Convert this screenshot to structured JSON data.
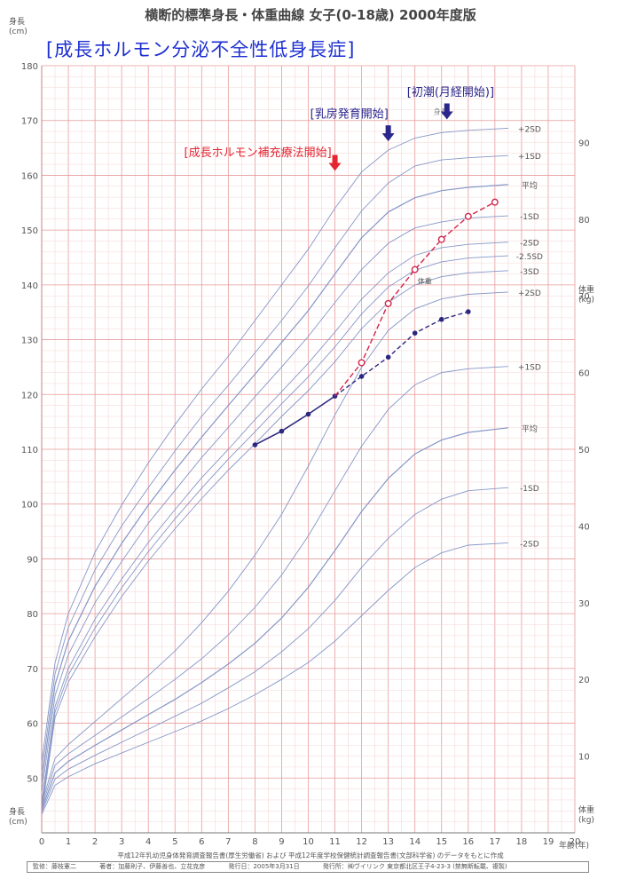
{
  "header": {
    "title": "横断的標準身長・体重曲線 女子(0-18歳) 2000年度版",
    "subtitle": "[成長ホルモン分泌不全性低身長症]"
  },
  "axis": {
    "height_label_top": "身長\n(cm)",
    "height_label_bottom": "身長\n(cm)",
    "weight_label_top": "体重\n(kg)",
    "weight_label_bottom": "体重\n(kg)",
    "x_unit": "年齢(年)"
  },
  "footer": {
    "source": "平成12年乳幼児身体発育調査報告書(厚生労働省) および 平成12年度学校保健統計調査報告書(文部科学省) のデータをもとに作成",
    "credits": [
      "監修：藤枝憲二",
      "著者：加藤則子、伊藤善也、立花克彦",
      "発行日：2005年3月31日",
      "発行所：㈱ヴイリンク 東京都北区王子4-23-3 (禁無断転載、複製)"
    ]
  },
  "chart_data": {
    "type": "line",
    "title": "横断的標準身長・体重曲線 女子(0-18歳) 2000年度版",
    "subtitle": "[成長ホルモン分泌不全性低身長症]",
    "xlabel": "年齢(年)",
    "ylabel": "身長(cm)",
    "y2label": "体重(kg)",
    "xlim": [
      0,
      20
    ],
    "ylim": [
      40,
      180
    ],
    "y2lim": [
      0,
      100
    ],
    "x_ticks": [
      0,
      1,
      2,
      3,
      4,
      5,
      6,
      7,
      8,
      9,
      10,
      11,
      12,
      13,
      14,
      15,
      16,
      17,
      18,
      19,
      20
    ],
    "y_ticks": [
      50,
      60,
      70,
      80,
      90,
      100,
      110,
      120,
      130,
      140,
      150,
      160,
      170,
      180
    ],
    "y2_ticks": [
      10,
      20,
      30,
      40,
      50,
      60,
      70,
      80,
      90
    ],
    "grid": true,
    "colors": {
      "grid_major": "#e79b9b",
      "grid_minor": "#f6d6d6",
      "reference_curves": "#8597c7",
      "patient_height": "#2c2880",
      "patient_height_after": "#d4254a",
      "annotation_red": "#e52530",
      "annotation_blue": "#2a268c"
    },
    "height_curves": [
      {
        "name": "+2SD",
        "x": [
          0,
          0.5,
          1,
          2,
          3,
          4,
          5,
          6,
          7,
          8,
          9,
          10,
          11,
          12,
          13,
          14,
          15,
          16,
          17.5
        ],
        "values": [
          52.8,
          71.0,
          80.0,
          91.2,
          99.8,
          107.5,
          114.5,
          121.0,
          127.0,
          133.5,
          140.0,
          146.5,
          154.0,
          160.6,
          164.6,
          166.8,
          167.8,
          168.2,
          168.6
        ]
      },
      {
        "name": "+1SD",
        "x": [
          0,
          0.5,
          1,
          2,
          3,
          4,
          5,
          6,
          7,
          8,
          9,
          10,
          11,
          12,
          13,
          14,
          15,
          16,
          17.5
        ],
        "values": [
          51.0,
          69.0,
          77.5,
          88.0,
          96.0,
          103.0,
          109.7,
          116.0,
          121.7,
          127.6,
          133.5,
          139.8,
          146.8,
          153.5,
          158.6,
          161.7,
          162.8,
          163.2,
          163.6
        ]
      },
      {
        "name": "平均",
        "x": [
          0,
          0.5,
          1,
          2,
          3,
          4,
          5,
          6,
          7,
          8,
          9,
          10,
          11,
          12,
          13,
          14,
          15,
          16,
          17.5
        ],
        "values": [
          49.2,
          67.0,
          75.0,
          85.0,
          92.8,
          99.8,
          106.2,
          112.2,
          118.0,
          123.7,
          129.5,
          135.3,
          142.0,
          148.6,
          153.3,
          155.9,
          157.2,
          157.8,
          158.3
        ]
      },
      {
        "name": "-1SD",
        "x": [
          0,
          0.5,
          1,
          2,
          3,
          4,
          5,
          6,
          7,
          8,
          9,
          10,
          11,
          12,
          13,
          14,
          15,
          16,
          17.5
        ],
        "values": [
          47.4,
          65.0,
          72.5,
          82.0,
          89.5,
          96.5,
          102.5,
          108.5,
          114.0,
          119.6,
          125.0,
          130.6,
          136.8,
          142.8,
          147.6,
          150.4,
          151.5,
          152.2,
          152.6
        ]
      },
      {
        "name": "-2SD",
        "x": [
          0,
          0.5,
          1,
          2,
          3,
          4,
          5,
          6,
          7,
          8,
          9,
          10,
          11,
          12,
          13,
          14,
          15,
          16,
          17.5
        ],
        "values": [
          45.5,
          63.0,
          70.0,
          79.0,
          86.3,
          93.0,
          99.0,
          104.8,
          110.0,
          115.4,
          120.5,
          125.7,
          131.4,
          137.4,
          142.2,
          145.4,
          146.8,
          147.4,
          147.8
        ]
      },
      {
        "name": "-2.5SD",
        "x": [
          0,
          0.5,
          1,
          2,
          3,
          4,
          5,
          6,
          7,
          8,
          9,
          10,
          11,
          12,
          13,
          14,
          15,
          16,
          17.5
        ],
        "values": [
          44.6,
          62.0,
          68.8,
          77.4,
          84.7,
          91.3,
          97.3,
          102.9,
          108.2,
          113.2,
          118.3,
          123.2,
          128.7,
          134.7,
          139.6,
          142.7,
          144.2,
          144.9,
          145.3
        ]
      },
      {
        "name": "-3SD",
        "x": [
          0,
          0.5,
          1,
          2,
          3,
          4,
          5,
          6,
          7,
          8,
          9,
          10,
          11,
          12,
          13,
          14,
          15,
          16,
          17.5
        ],
        "values": [
          43.7,
          61.0,
          67.5,
          75.8,
          83.1,
          89.6,
          95.5,
          101.0,
          106.2,
          111.0,
          116.0,
          120.7,
          126.0,
          132.0,
          136.8,
          140.0,
          141.5,
          142.2,
          142.6
        ]
      }
    ],
    "weight_curves": [
      {
        "name": "+2SD",
        "x": [
          0,
          0.5,
          1,
          2,
          3,
          4,
          5,
          6,
          7,
          8,
          9,
          10,
          11,
          12,
          13,
          14,
          15,
          16,
          17.5
        ],
        "values": [
          3.7,
          9.7,
          11.5,
          14.5,
          17.5,
          20.5,
          23.7,
          27.4,
          31.5,
          36.2,
          41.5,
          47.8,
          54.5,
          60.7,
          65.5,
          68.3,
          69.6,
          70.2,
          70.5
        ]
      },
      {
        "name": "+1SD",
        "x": [
          0,
          0.5,
          1,
          2,
          3,
          4,
          5,
          6,
          7,
          8,
          9,
          10,
          11,
          12,
          13,
          14,
          15,
          16,
          17.5
        ],
        "values": [
          3.3,
          8.8,
          10.3,
          12.7,
          15.1,
          17.5,
          20.0,
          22.7,
          25.8,
          29.4,
          33.6,
          38.7,
          44.6,
          50.4,
          55.2,
          58.4,
          60.0,
          60.5,
          60.8
        ]
      },
      {
        "name": "平均",
        "x": [
          0,
          0.5,
          1,
          2,
          3,
          4,
          5,
          6,
          7,
          8,
          9,
          10,
          11,
          12,
          13,
          14,
          15,
          16,
          17.5
        ],
        "values": [
          3.0,
          7.8,
          9.3,
          11.4,
          13.4,
          15.4,
          17.4,
          19.6,
          22.0,
          24.7,
          28.0,
          32.0,
          36.8,
          41.9,
          46.2,
          49.4,
          51.2,
          52.2,
          52.8
        ]
      },
      {
        "name": "-1SD",
        "x": [
          0,
          0.5,
          1,
          2,
          3,
          4,
          5,
          6,
          7,
          8,
          9,
          10,
          11,
          12,
          13,
          14,
          15,
          16,
          17.5
        ],
        "values": [
          2.7,
          7.0,
          8.3,
          10.1,
          11.8,
          13.5,
          15.2,
          16.9,
          18.9,
          21.0,
          23.6,
          26.6,
          30.3,
          34.6,
          38.4,
          41.5,
          43.5,
          44.6,
          45.0
        ]
      },
      {
        "name": "-2SD",
        "x": [
          0,
          0.5,
          1,
          2,
          3,
          4,
          5,
          6,
          7,
          8,
          9,
          10,
          11,
          12,
          13,
          14,
          15,
          16,
          17.5
        ],
        "values": [
          2.4,
          6.2,
          7.3,
          9.0,
          10.4,
          11.8,
          13.2,
          14.6,
          16.2,
          18.0,
          20.0,
          22.2,
          25.0,
          28.3,
          31.6,
          34.6,
          36.5,
          37.5,
          37.8
        ]
      }
    ],
    "patient_height": {
      "x": [
        8,
        9,
        10,
        11,
        12,
        13,
        14,
        15,
        16
      ],
      "values": [
        110.8,
        113.3,
        116.4,
        119.7,
        123.3,
        126.8,
        131.2,
        133.7,
        135.1
      ]
    },
    "patient_height_after": {
      "x": [
        11,
        12,
        13,
        14,
        15,
        16,
        17
      ],
      "values": [
        119.7,
        125.8,
        136.6,
        142.8,
        148.3,
        152.5,
        155.1
      ]
    },
    "annotations": [
      {
        "text": "[成長ホルモン補充療法開始]",
        "x": 11,
        "color": "red"
      },
      {
        "text": "[乳房発育開始]",
        "x": 13,
        "color": "blue"
      },
      {
        "text": "[初潮(月経開始)]",
        "x": 15.2,
        "color": "blue"
      }
    ],
    "curve_labels": {
      "height_group": "身長",
      "weight_group": "体重",
      "height_sd": [
        "+2SD",
        "+1SD",
        "平均",
        "-1SD",
        "-2SD",
        "-2.5SD",
        "-3SD"
      ],
      "weight_sd": [
        "+2SD",
        "+1SD",
        "平均",
        "-1SD",
        "-2SD"
      ]
    }
  }
}
